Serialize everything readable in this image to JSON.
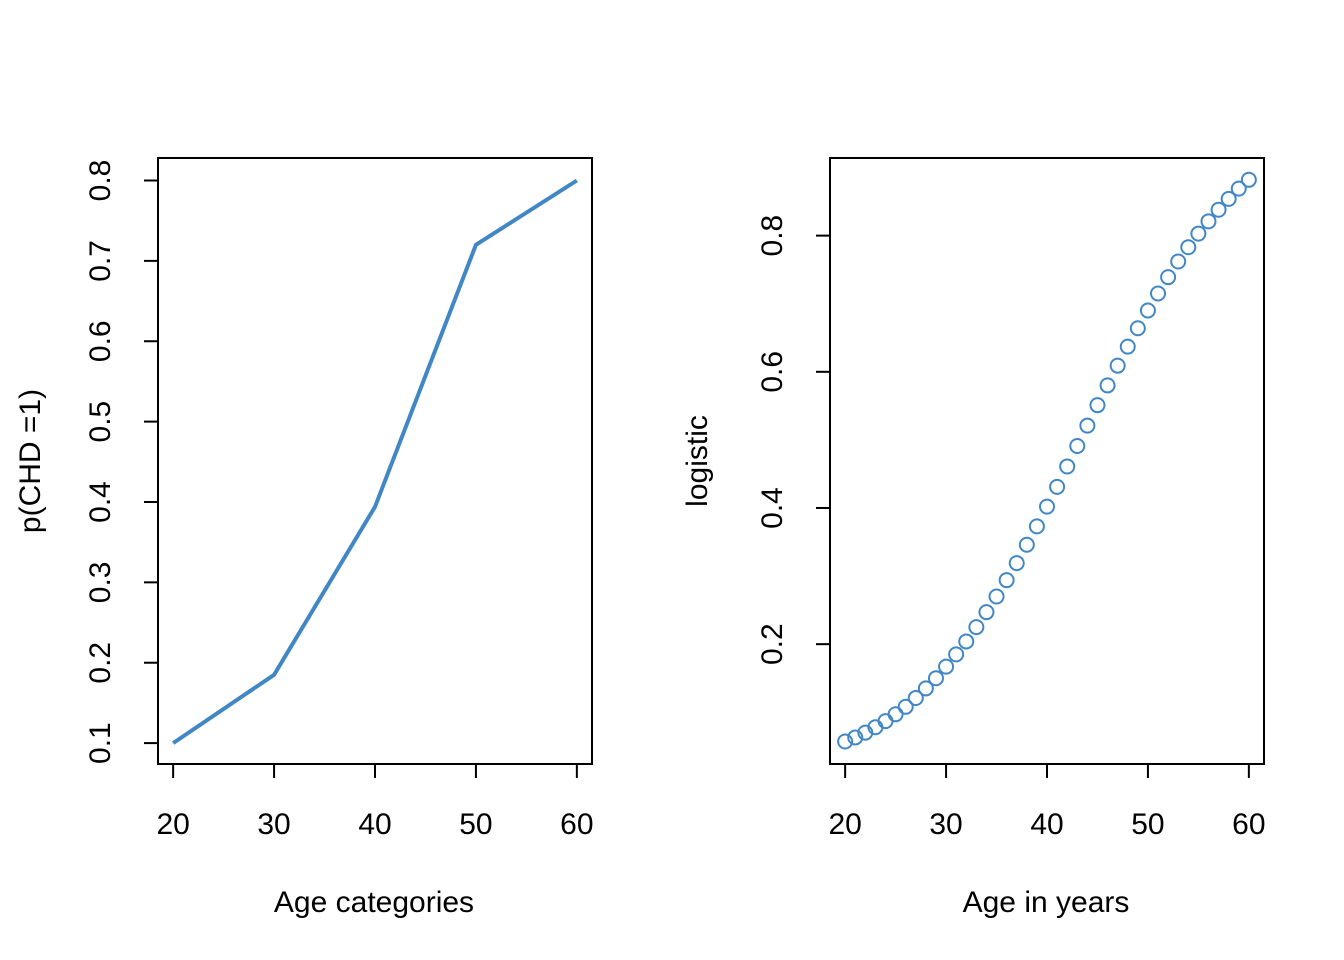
{
  "chart_data": [
    {
      "type": "line",
      "title": "",
      "xlabel": "Age categories",
      "ylabel": "p(CHD =1)",
      "x": [
        20,
        30,
        40,
        50,
        60
      ],
      "series": [
        {
          "values": [
            0.1,
            0.185,
            0.394,
            0.72,
            0.8
          ]
        }
      ],
      "xlim": [
        18.5,
        61.5
      ],
      "ylim": [
        0.074,
        0.828
      ],
      "xticks": [
        20,
        30,
        40,
        50,
        60
      ],
      "yticks": [
        0.1,
        0.2,
        0.3,
        0.4,
        0.5,
        0.6,
        0.7,
        0.8
      ],
      "ytick_labels": [
        "0.1",
        "0.2",
        "0.3",
        "0.4",
        "0.5",
        "0.6",
        "0.7",
        "0.8"
      ],
      "grid": false,
      "legend": "none",
      "color": "#4187c6"
    },
    {
      "type": "scatter",
      "title": "",
      "xlabel": "Age in years",
      "ylabel": "logistic",
      "x": [
        20,
        21,
        22,
        23,
        24,
        25,
        26,
        27,
        28,
        29,
        30,
        31,
        32,
        33,
        34,
        35,
        36,
        37,
        38,
        39,
        40,
        41,
        42,
        43,
        44,
        45,
        46,
        47,
        48,
        49,
        50,
        51,
        52,
        53,
        54,
        55,
        56,
        57,
        58,
        59,
        60
      ],
      "series": [
        {
          "values": [
            0.057,
            0.063,
            0.07,
            0.078,
            0.087,
            0.097,
            0.108,
            0.121,
            0.135,
            0.15,
            0.167,
            0.185,
            0.204,
            0.225,
            0.247,
            0.27,
            0.294,
            0.319,
            0.346,
            0.373,
            0.402,
            0.431,
            0.461,
            0.491,
            0.521,
            0.551,
            0.58,
            0.609,
            0.637,
            0.664,
            0.69,
            0.715,
            0.739,
            0.762,
            0.783,
            0.803,
            0.821,
            0.838,
            0.854,
            0.869,
            0.882
          ]
        }
      ],
      "xlim": [
        18.5,
        61.5
      ],
      "ylim": [
        0.024,
        0.914
      ],
      "xticks": [
        20,
        30,
        40,
        50,
        60
      ],
      "yticks": [
        0.2,
        0.4,
        0.6,
        0.8
      ],
      "ytick_labels": [
        "0.2",
        "0.4",
        "0.6",
        "0.8"
      ],
      "grid": false,
      "legend": "none",
      "color": "#4187c6"
    }
  ]
}
